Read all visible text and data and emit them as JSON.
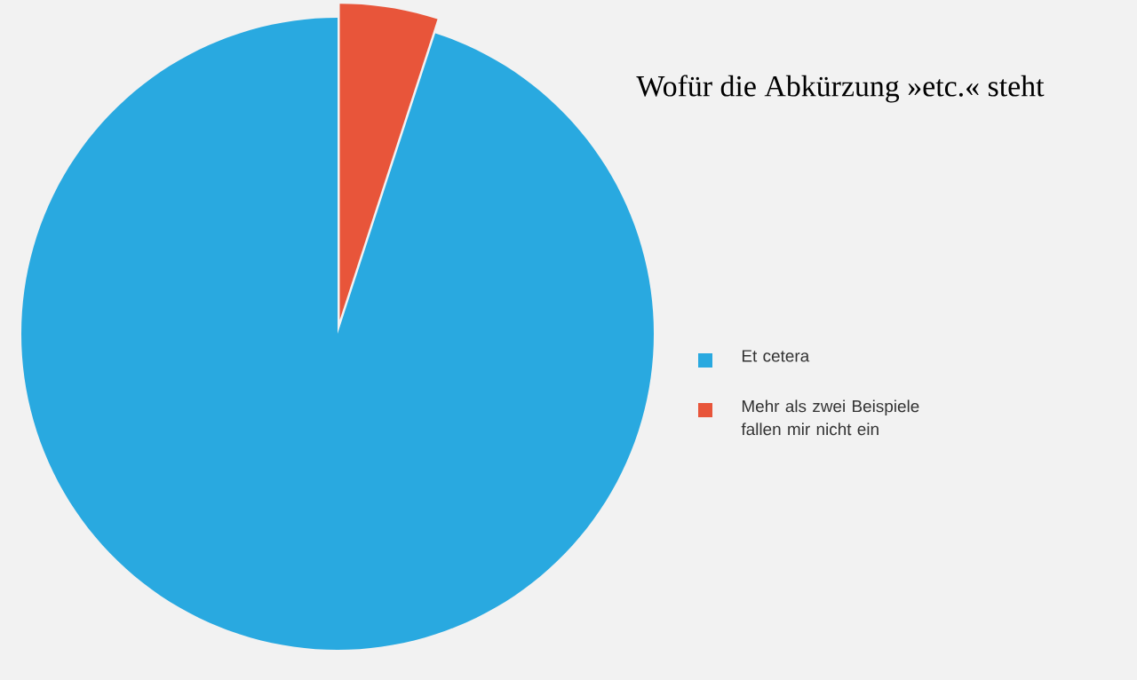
{
  "chart_data": {
    "type": "pie",
    "title": "Wofür die Abkürzung »etc.« steht",
    "categories": [
      "Et cetera",
      "Mehr als zwei Beispiele fallen mir nicht ein"
    ],
    "values": [
      95,
      5
    ],
    "colors": [
      "#29a9e0",
      "#e8553a"
    ],
    "legend": "right"
  }
}
